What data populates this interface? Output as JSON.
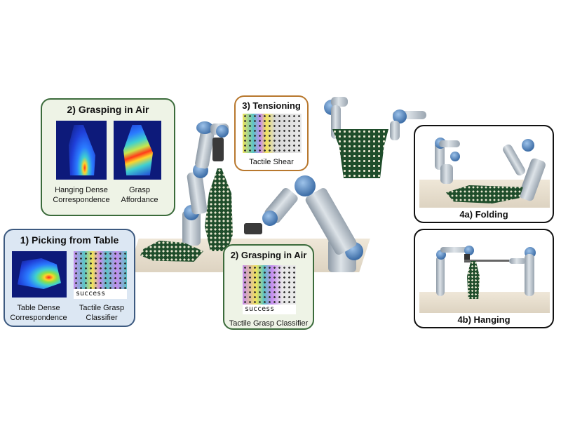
{
  "panels": {
    "grasping_air_top": {
      "title": "2) Grasping in Air",
      "caption_left": "Hanging Dense\nCorrespondence",
      "caption_right": "Grasp\nAffordance"
    },
    "picking_table": {
      "title": "1) Picking from Table",
      "status_text": "success",
      "caption_left": "Table Dense\nCorrespondence",
      "caption_right": "Tactile Grasp\nClassifier"
    },
    "tensioning": {
      "title": "3) Tensioning",
      "caption": "Tactile Shear"
    },
    "grasping_air_bottom": {
      "title": "2) Grasping in Air",
      "status_text": "success",
      "caption": "Tactile Grasp Classifier"
    },
    "folding": {
      "title": "4a) Folding"
    },
    "hanging": {
      "title": "4b) Hanging"
    }
  },
  "colors": {
    "green_border": "#3b6b3b",
    "green_fill": "#eef3e6",
    "blue_border": "#3d5a80",
    "blue_fill": "#dce7f3",
    "orange_border": "#b8782e",
    "black_border": "#111111",
    "robot_joint_blue": "#4a7bb7",
    "garment_green": "#1f4d2b"
  }
}
